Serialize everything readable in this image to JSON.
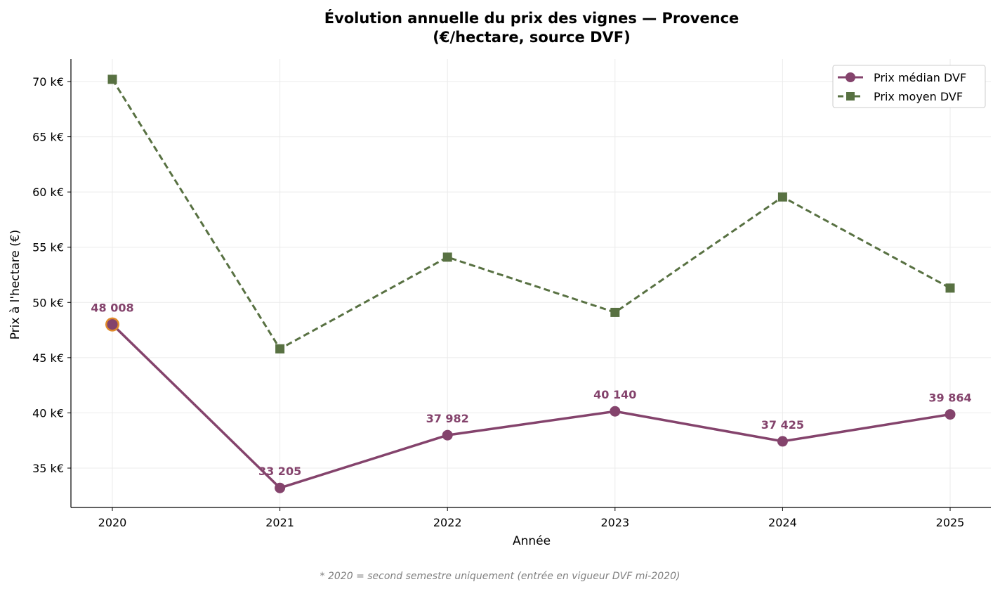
{
  "chart_data": {
    "type": "line",
    "title_line1": "Évolution annuelle du prix des vignes — Provence",
    "title_line2": "(€/hectare, source DVF)",
    "xlabel": "Année",
    "ylabel": "Prix à l'hectare (€)",
    "x": [
      "2020",
      "2021",
      "2022",
      "2023",
      "2024",
      "2025"
    ],
    "ylim": [
      31000,
      72000
    ],
    "yticks": [
      35000,
      40000,
      45000,
      50000,
      55000,
      60000,
      65000,
      70000
    ],
    "ytick_labels": [
      "35 k€",
      "40 k€",
      "45 k€",
      "50 k€",
      "55 k€",
      "60 k€",
      "65 k€",
      "70 k€"
    ],
    "grid": true,
    "legend_position": "top-right",
    "series": [
      {
        "name": "Prix médian DVF",
        "values": [
          48008,
          33205,
          37982,
          40140,
          37425,
          39864
        ],
        "data_labels": [
          "48 008",
          "33 205",
          "37 982",
          "40 140",
          "37 425",
          "39 864"
        ],
        "color": "#84436c",
        "marker": "circle",
        "line_style": "solid",
        "highlight_point_color": "#e08a2a"
      },
      {
        "name": "Prix moyen DVF",
        "values": [
          70200,
          45800,
          54100,
          49100,
          59550,
          51300
        ],
        "color": "#587142",
        "marker": "square",
        "line_style": "dashed"
      }
    ],
    "footnote": "* 2020 = second semestre uniquement (entrée en vigueur DVF mi-2020)"
  }
}
